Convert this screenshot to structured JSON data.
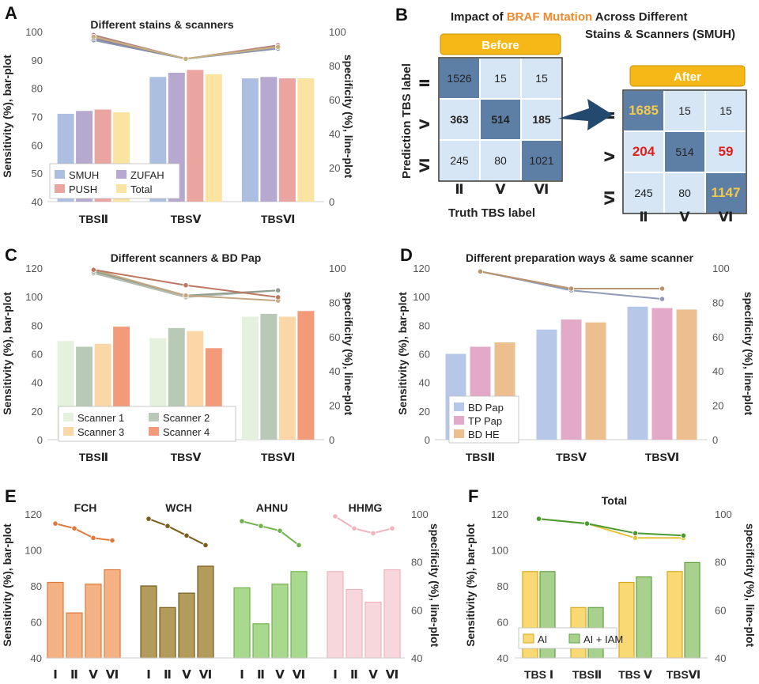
{
  "panels": {
    "A": "A",
    "B": "B",
    "C": "C",
    "D": "D",
    "E": "E",
    "F": "F"
  },
  "colors": {
    "tick": "#555555",
    "axis": "#cfcfcf",
    "cm_dark": "#5d7fa6",
    "cm_light": "#d6e6f5",
    "header": "#f6b817",
    "arrow": "#24496f",
    "highlight_yellow": "#f2c94c",
    "highlight_red": "#e0201b",
    "title_orange": "#ee8a2d"
  },
  "chart_data": [
    {
      "id": "A",
      "type": "bar",
      "title": "Different stains & scanners",
      "categories": [
        "TBSⅡ",
        "TBSⅤ",
        "TBSⅥ"
      ],
      "ylabel": "Sensitivity (%),  bar-plot",
      "y2label": "specificity (%), line-plot",
      "ylim": [
        40,
        100
      ],
      "yticks": [
        40,
        50,
        60,
        70,
        80,
        90,
        100
      ],
      "y2lim": [
        0,
        100
      ],
      "y2ticks": [
        0,
        20,
        40,
        60,
        80,
        100
      ],
      "legend_position": "bottom-left",
      "series": [
        {
          "name": "SMUH",
          "color": "#adbfe0",
          "values": [
            71,
            84,
            83.5
          ],
          "line": [
            95,
            84,
            90
          ]
        },
        {
          "name": "ZUFAH",
          "color": "#b7a8cf",
          "values": [
            72,
            85.5,
            84
          ],
          "line": [
            96,
            84,
            91
          ]
        },
        {
          "name": "PUSH",
          "color": "#eaa5a1",
          "values": [
            72.5,
            86.5,
            83.5
          ],
          "line": [
            98,
            84,
            92
          ]
        },
        {
          "name": "Total",
          "color": "#fbe3a1",
          "values": [
            71.5,
            85,
            83.5
          ],
          "line": [
            97,
            84,
            91
          ]
        }
      ]
    },
    {
      "id": "B",
      "type": "table",
      "title_parts": [
        "Impact of ",
        "BRAF",
        " ",
        "Mutation",
        " Across Different"
      ],
      "title_line2": "Stains & Scanners (SMUH)",
      "before_label": "Before",
      "after_label": "After",
      "ylabel": "Prediction TBS label",
      "xlabel": "Truth TBS label",
      "labels": [
        "Ⅱ",
        "Ⅴ",
        "Ⅵ"
      ],
      "before": [
        [
          1526,
          15,
          15
        ],
        [
          363,
          514,
          185
        ],
        [
          245,
          80,
          1021
        ]
      ],
      "after": [
        [
          1685,
          15,
          15
        ],
        [
          204,
          514,
          59
        ],
        [
          245,
          80,
          1147
        ]
      ]
    },
    {
      "id": "C",
      "type": "bar",
      "title": "Different scanners & BD Pap",
      "categories": [
        "TBSⅡ",
        "TBSⅤ",
        "TBSⅥ"
      ],
      "ylabel": "Sensitivity (%),  bar-plot",
      "y2label": "specificity (%), line-plot",
      "ylim": [
        0,
        120
      ],
      "yticks": [
        0,
        20,
        40,
        60,
        80,
        100,
        120
      ],
      "y2lim": [
        0,
        100
      ],
      "y2ticks": [
        0,
        20,
        40,
        60,
        80,
        100
      ],
      "legend_position": "bottom-left",
      "series": [
        {
          "name": "Scanner 1",
          "color": "#e4f1dc",
          "values": [
            69,
            71,
            86
          ],
          "line": [
            97,
            83,
            87
          ]
        },
        {
          "name": "Scanner 2",
          "color": "#b9c9b7",
          "values": [
            65,
            78,
            88
          ],
          "line": [
            98,
            84,
            87
          ]
        },
        {
          "name": "Scanner 3",
          "color": "#fbd7a8",
          "values": [
            67,
            76,
            86
          ],
          "line": [
            99,
            84,
            81
          ]
        },
        {
          "name": "Scanner 4",
          "color": "#f29a7a",
          "values": [
            79,
            64,
            90
          ],
          "line": [
            99,
            90,
            83
          ]
        }
      ]
    },
    {
      "id": "D",
      "type": "bar",
      "title": "Different preparation ways & same scanner",
      "categories": [
        "TBSⅡ",
        "TBSⅤ",
        "TBSⅥ"
      ],
      "ylabel": "Sensitivity (%),  bar-plot",
      "y2label": "specificity (%), line-plot",
      "ylim": [
        0,
        120
      ],
      "yticks": [
        0,
        20,
        40,
        60,
        80,
        100,
        120
      ],
      "y2lim": [
        0,
        100
      ],
      "y2ticks": [
        0,
        20,
        40,
        60,
        80,
        100
      ],
      "legend_position": "bottom-left",
      "series": [
        {
          "name": "BD Pap",
          "color": "#b7c7e7",
          "values": [
            60,
            77,
            93
          ],
          "line": [
            98,
            87,
            82
          ]
        },
        {
          "name": "TP Pap",
          "color": "#e2a9c8",
          "values": [
            65,
            84,
            92
          ],
          "line": [
            98,
            88,
            88
          ]
        },
        {
          "name": "BD HE",
          "color": "#edbf8e",
          "values": [
            68,
            82,
            91
          ],
          "line": [
            98,
            88,
            88
          ]
        }
      ]
    },
    {
      "id": "E",
      "type": "bar",
      "ylabel": "Sensitivity (%),  bar-plot",
      "y2label": "specificity (%), line-plot",
      "ylim": [
        40,
        120
      ],
      "yticks": [
        40,
        60,
        80,
        100,
        120
      ],
      "y2lim": [
        40,
        100
      ],
      "y2ticks": [
        40,
        60,
        80,
        100
      ],
      "categories": [
        "Ⅰ",
        "Ⅱ",
        "Ⅴ",
        "Ⅵ"
      ],
      "groups": [
        {
          "name": "FCH",
          "fill": "#f4b183",
          "stroke": "#e07a3c",
          "line_color": "#e07a3c",
          "values": [
            82,
            65,
            81,
            89
          ],
          "line": [
            96,
            94,
            90,
            89
          ]
        },
        {
          "name": "WCH",
          "fill": "#b39b5c",
          "stroke": "#7a5c1e",
          "line_color": "#7a5c1e",
          "values": [
            80,
            68,
            76,
            91
          ],
          "line": [
            98,
            95,
            91,
            87
          ]
        },
        {
          "name": "AHNU",
          "fill": "#a9d98f",
          "stroke": "#70b34e",
          "line_color": "#70b34e",
          "values": [
            79,
            59,
            81,
            88
          ],
          "line": [
            97,
            95,
            93,
            87
          ]
        },
        {
          "name": "HHMG",
          "fill": "#f8d7dc",
          "stroke": "#f0b4be",
          "line_color": "#f0b4be",
          "values": [
            88,
            78,
            71,
            89
          ],
          "line": [
            99,
            94,
            92,
            94
          ]
        }
      ]
    },
    {
      "id": "F",
      "type": "bar",
      "title": "Total",
      "categories": [
        "TBS Ⅰ",
        "TBSⅡ",
        "TBS Ⅴ",
        "TBSⅥ"
      ],
      "ylabel": "Sensitivity (%),  bar-plot",
      "y2label": "specificity (%), line-plot",
      "ylim": [
        40,
        120
      ],
      "yticks": [
        40,
        60,
        80,
        100,
        120
      ],
      "y2lim": [
        40,
        100
      ],
      "y2ticks": [
        40,
        60,
        80,
        100
      ],
      "legend_position": "bottom-left",
      "series": [
        {
          "name": "AI",
          "fill": "#f8d974",
          "stroke": "#d6a91a",
          "line_color": "#e6c13a",
          "values": [
            88,
            68,
            82,
            88
          ],
          "line": [
            98,
            96,
            90,
            90
          ]
        },
        {
          "name": "AI + IAM",
          "fill": "#a9d18e",
          "stroke": "#62a244",
          "line_color": "#4a9a30",
          "values": [
            88,
            68,
            85,
            93
          ],
          "line": [
            98,
            96,
            92,
            91
          ]
        }
      ]
    }
  ]
}
